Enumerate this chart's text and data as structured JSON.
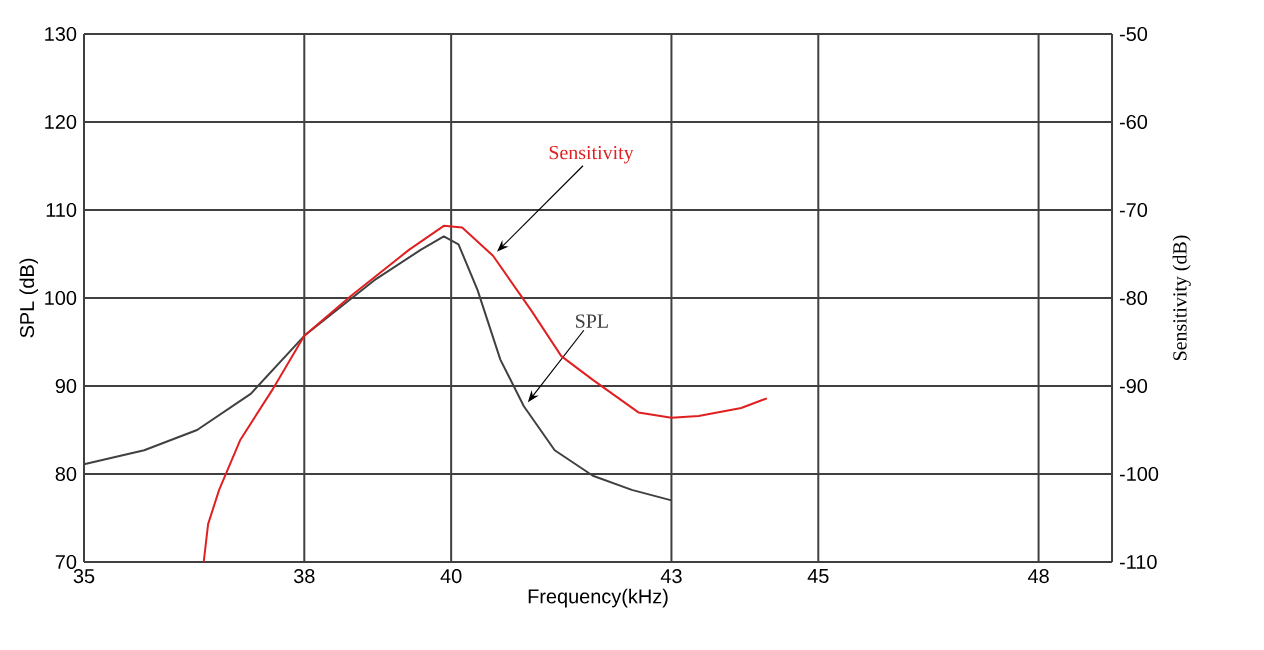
{
  "chart_data": {
    "type": "line",
    "xlabel": "Frequency(kHz)",
    "ylabel": "SPL (dB)",
    "y2label": "Sensitivity (dB)",
    "xlim": [
      35,
      49
    ],
    "xticks": [
      35,
      38,
      40,
      43,
      45,
      48
    ],
    "ylim": [
      70,
      130
    ],
    "yticks": [
      70,
      80,
      90,
      100,
      110,
      120,
      130
    ],
    "y2lim": [
      -110,
      -50
    ],
    "y2ticks": [
      -110,
      -100,
      -90,
      -80,
      -70,
      -60,
      -50
    ],
    "grid": true,
    "series": [
      {
        "name": "SPL",
        "color": "#404040",
        "x": [
          35,
          35.82,
          36.54,
          37.27,
          38,
          38.95,
          39.59,
          39.9,
          40.1,
          40.36,
          40.67,
          40.99,
          41.41,
          41.93,
          42.46,
          43
        ],
        "values": [
          81.1,
          82.7,
          85.0,
          89.1,
          95.7,
          102.0,
          105.5,
          107.0,
          106.1,
          100.9,
          93.0,
          87.7,
          82.7,
          79.8,
          78.2,
          77.0
        ]
      },
      {
        "name": "Sensitivity",
        "color": "#e02020",
        "axis": "y2",
        "x": [
          36.63,
          36.69,
          36.84,
          37.13,
          37.56,
          38,
          38.63,
          39.43,
          39.9,
          40.15,
          40.57,
          41.09,
          41.5,
          41.93,
          42.55,
          43,
          43.37,
          43.95,
          44.3
        ],
        "values": [
          -110,
          -105.7,
          -101.8,
          -96.1,
          -90.5,
          -84.3,
          -79.8,
          -74.5,
          -71.8,
          -72.0,
          -75.2,
          -81.4,
          -86.6,
          -89.3,
          -93.0,
          -93.6,
          -93.4,
          -92.5,
          -91.4
        ]
      }
    ]
  }
}
